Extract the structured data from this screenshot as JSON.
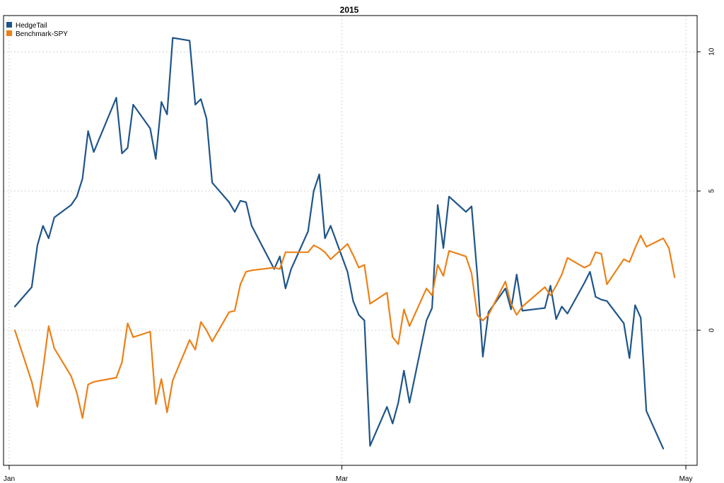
{
  "chart_data": {
    "type": "line",
    "title": "2015",
    "xlabel": "",
    "ylabel": "",
    "x_axis": {
      "type": "date",
      "range": [
        "2014-12-31",
        "2015-05-03"
      ],
      "ticks": [
        {
          "date": "2015-01-01",
          "label": "Jan"
        },
        {
          "date": "2015-03-01",
          "label": "Mar"
        },
        {
          "date": "2015-05-01",
          "label": "May"
        }
      ]
    },
    "y_axis": {
      "side": "right",
      "range": [
        -4.85,
        11.3
      ],
      "ticks": [
        {
          "value": 0,
          "label": "0"
        },
        {
          "value": 5,
          "label": "5"
        },
        {
          "value": 10,
          "label": "10"
        }
      ]
    },
    "grid": true,
    "legend": {
      "position": "top-left"
    },
    "series": [
      {
        "name": "HedgeTail",
        "color": "#1F5588",
        "points": [
          [
            "2015-01-02",
            0.85
          ],
          [
            "2015-01-05",
            1.55
          ],
          [
            "2015-01-06",
            3.05
          ],
          [
            "2015-01-07",
            3.75
          ],
          [
            "2015-01-08",
            3.3
          ],
          [
            "2015-01-09",
            4.05
          ],
          [
            "2015-01-12",
            4.5
          ],
          [
            "2015-01-13",
            4.8
          ],
          [
            "2015-01-14",
            5.45
          ],
          [
            "2015-01-15",
            7.15
          ],
          [
            "2015-01-16",
            6.4
          ],
          [
            "2015-01-20",
            8.35
          ],
          [
            "2015-01-21",
            6.35
          ],
          [
            "2015-01-22",
            6.55
          ],
          [
            "2015-01-23",
            8.1
          ],
          [
            "2015-01-26",
            7.25
          ],
          [
            "2015-01-27",
            6.15
          ],
          [
            "2015-01-28",
            8.2
          ],
          [
            "2015-01-29",
            7.75
          ],
          [
            "2015-01-30",
            10.5
          ],
          [
            "2015-02-02",
            10.4
          ],
          [
            "2015-02-03",
            8.1
          ],
          [
            "2015-02-04",
            8.3
          ],
          [
            "2015-02-05",
            7.6
          ],
          [
            "2015-02-06",
            5.3
          ],
          [
            "2015-02-09",
            4.6
          ],
          [
            "2015-02-10",
            4.25
          ],
          [
            "2015-02-11",
            4.65
          ],
          [
            "2015-02-12",
            4.6
          ],
          [
            "2015-02-13",
            3.75
          ],
          [
            "2015-02-17",
            2.2
          ],
          [
            "2015-02-18",
            2.65
          ],
          [
            "2015-02-19",
            1.5
          ],
          [
            "2015-02-20",
            2.2
          ],
          [
            "2015-02-23",
            3.55
          ],
          [
            "2015-02-24",
            5.0
          ],
          [
            "2015-02-25",
            5.6
          ],
          [
            "2015-02-26",
            3.3
          ],
          [
            "2015-02-27",
            3.75
          ],
          [
            "2015-03-02",
            2.1
          ],
          [
            "2015-03-03",
            1.05
          ],
          [
            "2015-03-04",
            0.55
          ],
          [
            "2015-03-05",
            0.35
          ],
          [
            "2015-03-06",
            -4.15
          ],
          [
            "2015-03-09",
            -2.75
          ],
          [
            "2015-03-10",
            -3.35
          ],
          [
            "2015-03-11",
            -2.6
          ],
          [
            "2015-03-12",
            -1.45
          ],
          [
            "2015-03-13",
            -2.6
          ],
          [
            "2015-03-16",
            0.35
          ],
          [
            "2015-03-17",
            0.8
          ],
          [
            "2015-03-18",
            4.5
          ],
          [
            "2015-03-19",
            2.95
          ],
          [
            "2015-03-20",
            4.8
          ],
          [
            "2015-03-23",
            4.25
          ],
          [
            "2015-03-24",
            4.45
          ],
          [
            "2015-03-25",
            2.0
          ],
          [
            "2015-03-26",
            -0.95
          ],
          [
            "2015-03-27",
            0.65
          ],
          [
            "2015-03-30",
            1.5
          ],
          [
            "2015-03-31",
            0.75
          ],
          [
            "2015-04-01",
            2.0
          ],
          [
            "2015-04-02",
            0.7
          ],
          [
            "2015-04-06",
            0.8
          ],
          [
            "2015-04-07",
            1.6
          ],
          [
            "2015-04-08",
            0.4
          ],
          [
            "2015-04-09",
            0.85
          ],
          [
            "2015-04-10",
            0.6
          ],
          [
            "2015-04-13",
            1.7
          ],
          [
            "2015-04-14",
            2.1
          ],
          [
            "2015-04-15",
            1.2
          ],
          [
            "2015-04-16",
            1.1
          ],
          [
            "2015-04-17",
            1.05
          ],
          [
            "2015-04-20",
            0.25
          ],
          [
            "2015-04-21",
            -1.0
          ],
          [
            "2015-04-22",
            0.9
          ],
          [
            "2015-04-23",
            0.45
          ],
          [
            "2015-04-24",
            -2.9
          ],
          [
            "2015-04-27",
            -4.25
          ]
        ]
      },
      {
        "name": "Benchmark-SPY",
        "color": "#EB8118",
        "points": [
          [
            "2015-01-02",
            0.0
          ],
          [
            "2015-01-05",
            -1.85
          ],
          [
            "2015-01-06",
            -2.75
          ],
          [
            "2015-01-07",
            -1.4
          ],
          [
            "2015-01-08",
            0.15
          ],
          [
            "2015-01-09",
            -0.65
          ],
          [
            "2015-01-12",
            -1.65
          ],
          [
            "2015-01-13",
            -2.25
          ],
          [
            "2015-01-14",
            -3.15
          ],
          [
            "2015-01-15",
            -1.95
          ],
          [
            "2015-01-16",
            -1.85
          ],
          [
            "2015-01-20",
            -1.7
          ],
          [
            "2015-01-21",
            -1.15
          ],
          [
            "2015-01-22",
            0.25
          ],
          [
            "2015-01-23",
            -0.25
          ],
          [
            "2015-01-26",
            -0.05
          ],
          [
            "2015-01-27",
            -2.65
          ],
          [
            "2015-01-28",
            -1.75
          ],
          [
            "2015-01-29",
            -2.95
          ],
          [
            "2015-01-30",
            -1.8
          ],
          [
            "2015-02-02",
            -0.35
          ],
          [
            "2015-02-03",
            -0.7
          ],
          [
            "2015-02-04",
            0.3
          ],
          [
            "2015-02-05",
            0.0
          ],
          [
            "2015-02-06",
            -0.4
          ],
          [
            "2015-02-09",
            0.65
          ],
          [
            "2015-02-10",
            0.7
          ],
          [
            "2015-02-11",
            1.65
          ],
          [
            "2015-02-12",
            2.1
          ],
          [
            "2015-02-13",
            2.15
          ],
          [
            "2015-02-17",
            2.25
          ],
          [
            "2015-02-18",
            2.2
          ],
          [
            "2015-02-19",
            2.8
          ],
          [
            "2015-02-20",
            2.8
          ],
          [
            "2015-02-23",
            2.8
          ],
          [
            "2015-02-24",
            3.05
          ],
          [
            "2015-02-25",
            2.95
          ],
          [
            "2015-02-26",
            2.8
          ],
          [
            "2015-02-27",
            2.55
          ],
          [
            "2015-03-02",
            3.1
          ],
          [
            "2015-03-03",
            2.7
          ],
          [
            "2015-03-04",
            2.25
          ],
          [
            "2015-03-05",
            2.35
          ],
          [
            "2015-03-06",
            0.95
          ],
          [
            "2015-03-09",
            1.35
          ],
          [
            "2015-03-10",
            -0.25
          ],
          [
            "2015-03-11",
            -0.5
          ],
          [
            "2015-03-12",
            0.75
          ],
          [
            "2015-03-13",
            0.15
          ],
          [
            "2015-03-16",
            1.5
          ],
          [
            "2015-03-17",
            1.25
          ],
          [
            "2015-03-18",
            2.35
          ],
          [
            "2015-03-19",
            1.95
          ],
          [
            "2015-03-20",
            2.85
          ],
          [
            "2015-03-23",
            2.65
          ],
          [
            "2015-03-24",
            2.05
          ],
          [
            "2015-03-25",
            0.55
          ],
          [
            "2015-03-26",
            0.35
          ],
          [
            "2015-03-27",
            0.55
          ],
          [
            "2015-03-30",
            1.75
          ],
          [
            "2015-03-31",
            0.95
          ],
          [
            "2015-04-01",
            0.55
          ],
          [
            "2015-04-02",
            0.85
          ],
          [
            "2015-04-06",
            1.55
          ],
          [
            "2015-04-07",
            1.25
          ],
          [
            "2015-04-08",
            1.6
          ],
          [
            "2015-04-09",
            2.0
          ],
          [
            "2015-04-10",
            2.6
          ],
          [
            "2015-04-13",
            2.25
          ],
          [
            "2015-04-14",
            2.35
          ],
          [
            "2015-04-15",
            2.8
          ],
          [
            "2015-04-16",
            2.75
          ],
          [
            "2015-04-17",
            1.65
          ],
          [
            "2015-04-20",
            2.55
          ],
          [
            "2015-04-21",
            2.45
          ],
          [
            "2015-04-22",
            2.95
          ],
          [
            "2015-04-23",
            3.4
          ],
          [
            "2015-04-24",
            3.0
          ],
          [
            "2015-04-27",
            3.3
          ],
          [
            "2015-04-28",
            2.95
          ],
          [
            "2015-04-29",
            1.9
          ]
        ]
      }
    ]
  }
}
